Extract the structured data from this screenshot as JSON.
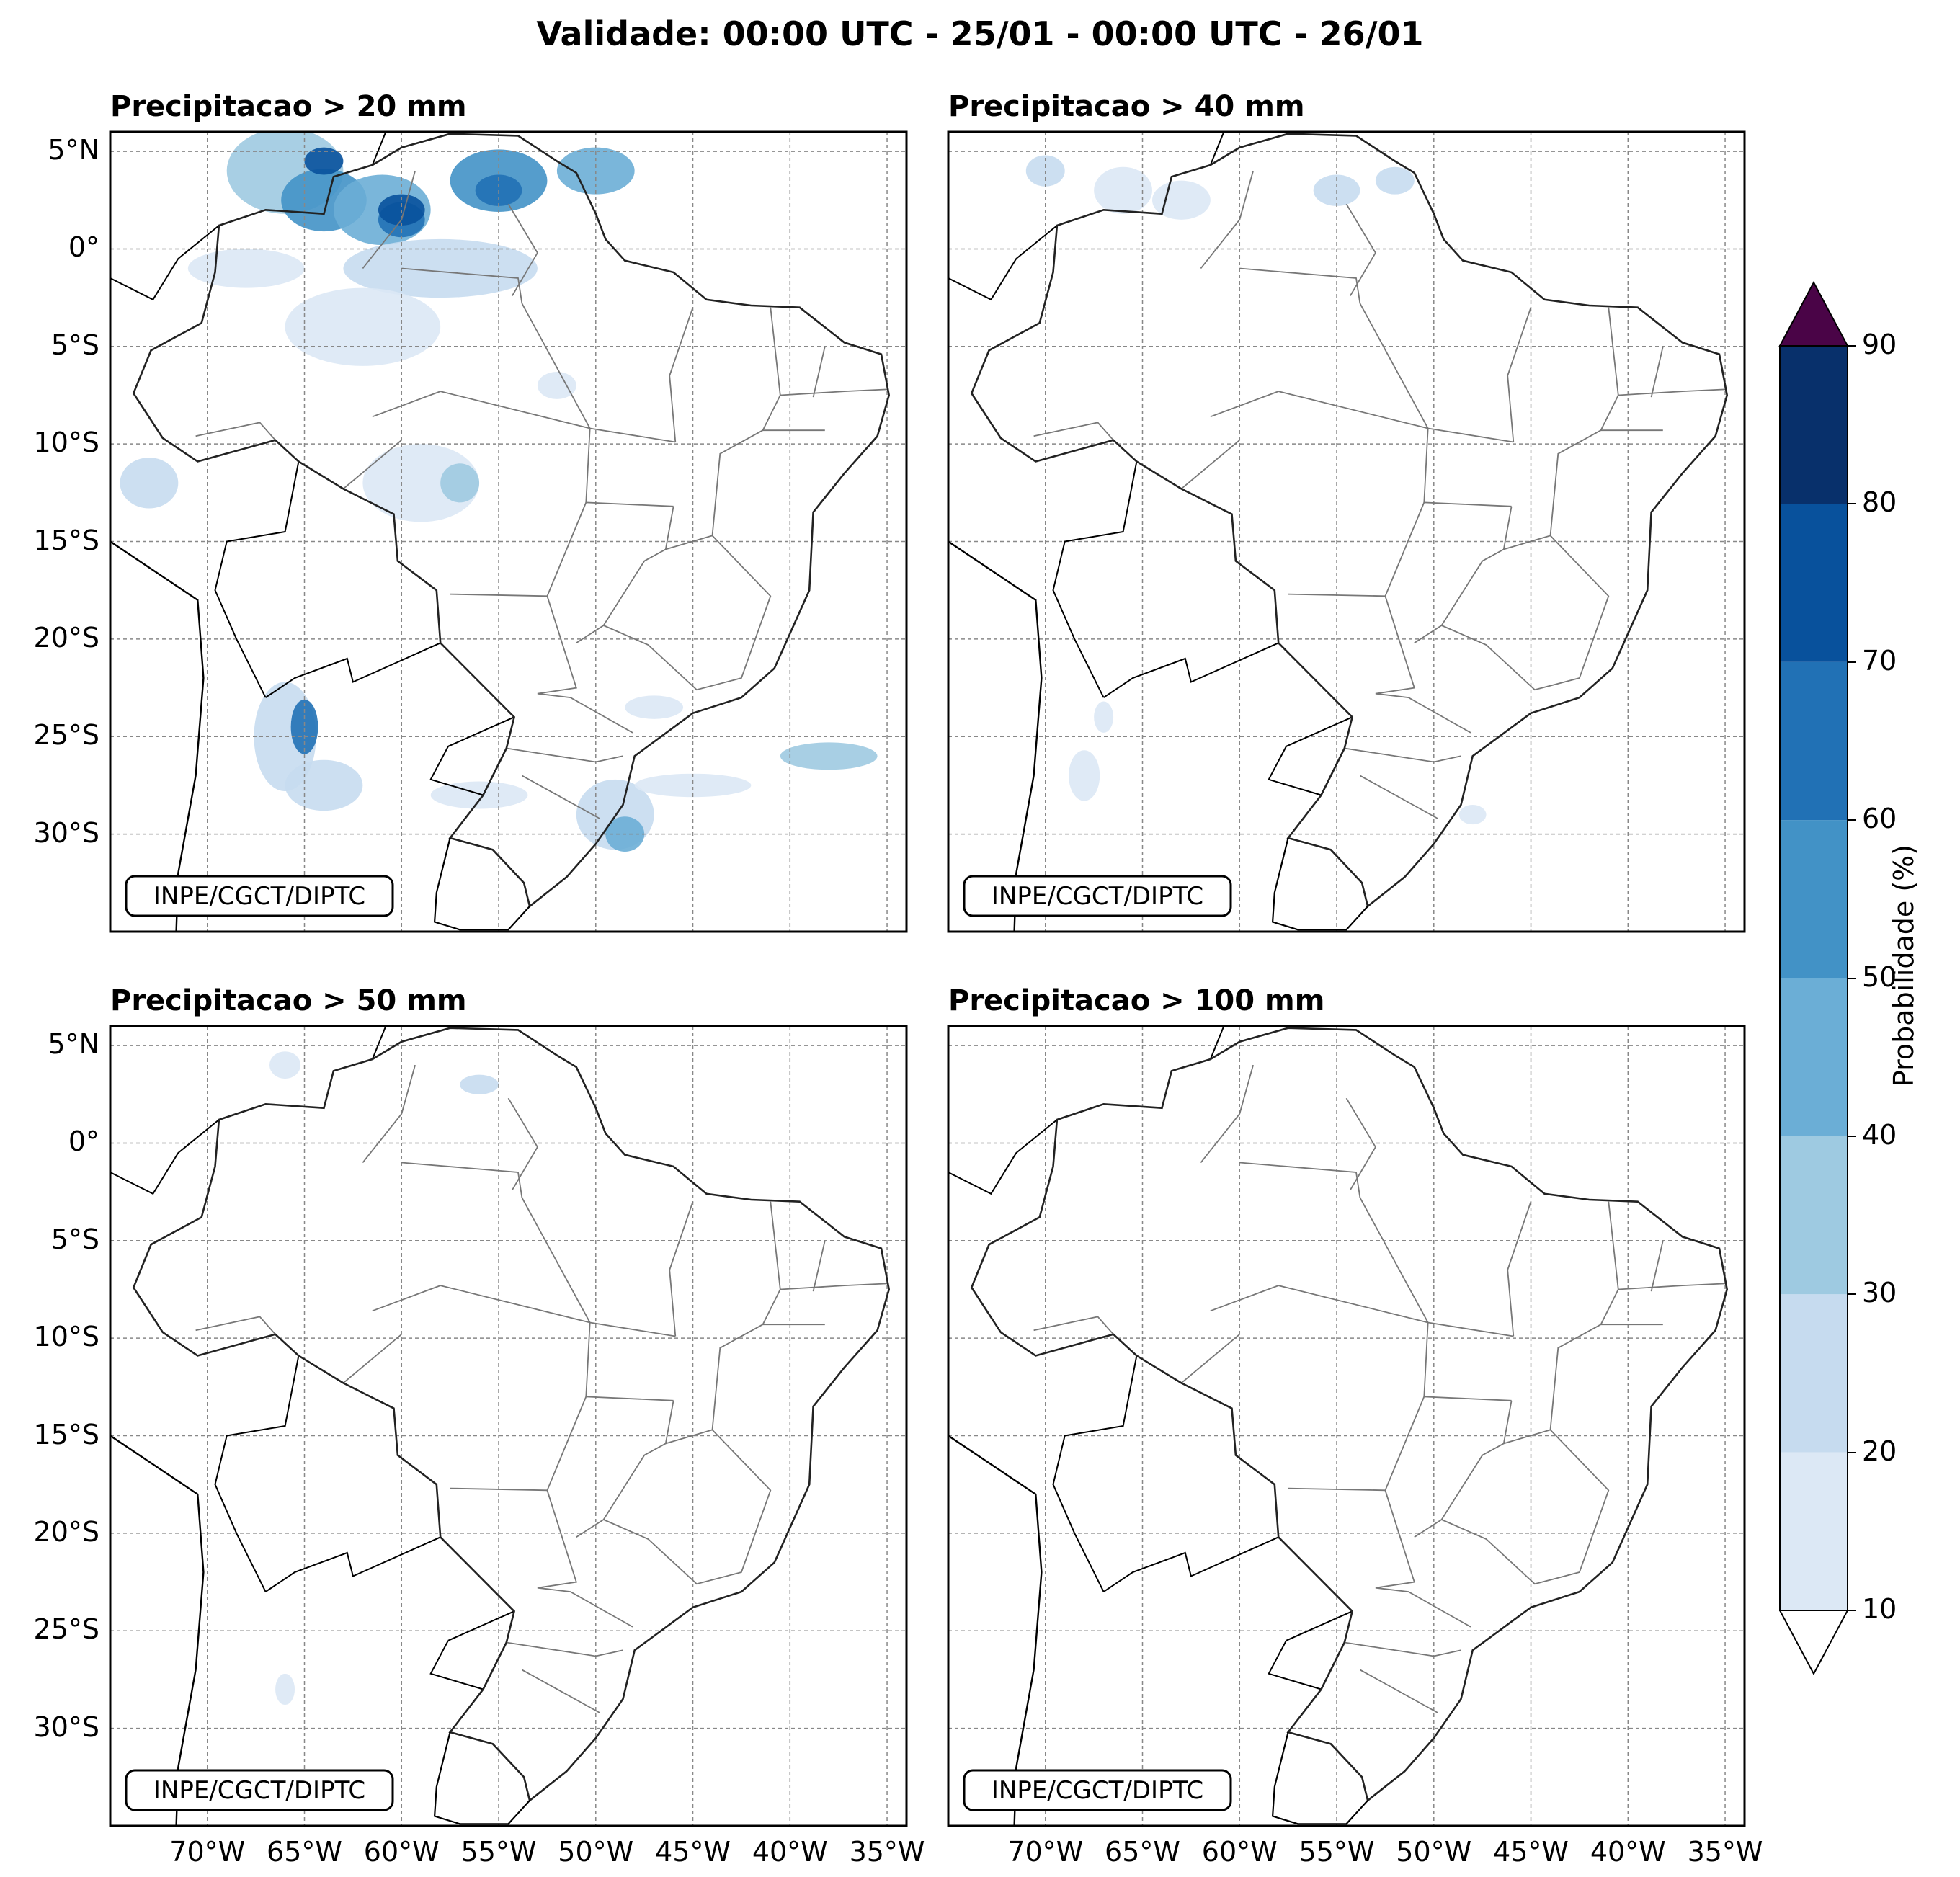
{
  "title": "Validade: 00:00 UTC - 25/01 - 00:00 UTC - 26/01",
  "panels": [
    {
      "id": "p20",
      "title": "Precipitacao > 20 mm"
    },
    {
      "id": "p40",
      "title": "Precipitacao > 40 mm"
    },
    {
      "id": "p50",
      "title": "Precipitacao > 50 mm"
    },
    {
      "id": "p100",
      "title": "Precipitacao > 100 mm"
    }
  ],
  "watermark": "INPE/CGCT/DIPTC",
  "lat_ticks": [
    "5°N",
    "0°",
    "5°S",
    "10°S",
    "15°S",
    "20°S",
    "25°S",
    "30°S"
  ],
  "lon_ticks": [
    "70°W",
    "65°W",
    "60°W",
    "55°W",
    "50°W",
    "45°W",
    "40°W",
    "35°W"
  ],
  "colorbar": {
    "label": "Probabilidade (%)",
    "ticks": [
      "10",
      "20",
      "30",
      "40",
      "50",
      "60",
      "70",
      "80",
      "90"
    ],
    "colors": [
      "#dce8f5",
      "#c6dbef",
      "#9ecae1",
      "#6baed6",
      "#4292c6",
      "#2171b5",
      "#08519c",
      "#08306b"
    ],
    "over_color": "#4a0447",
    "under_color": "#ffffff"
  }
}
